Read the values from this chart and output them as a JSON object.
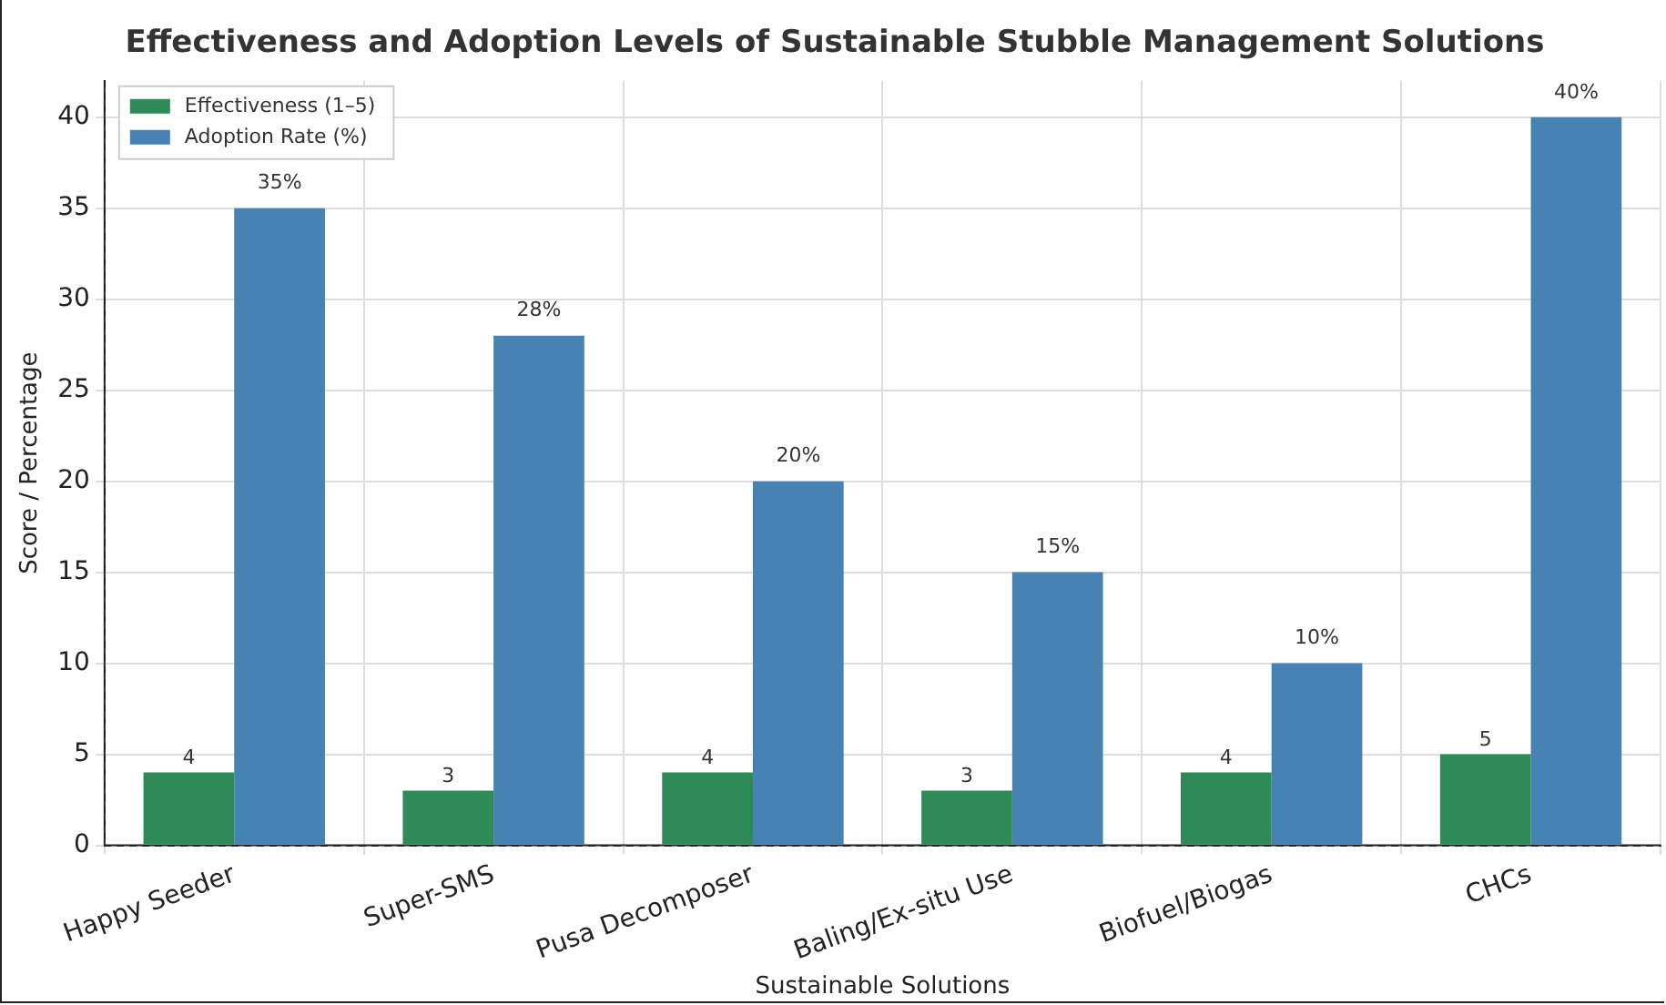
{
  "chart_data": {
    "type": "bar",
    "title": "Effectiveness and Adoption Levels of Sustainable Stubble Management Solutions",
    "xlabel": "Sustainable Solutions",
    "ylabel": "Score / Percentage",
    "categories": [
      "Happy Seeder",
      "Super-SMS",
      "Pusa Decomposer",
      "Baling/Ex-situ Use",
      "Biofuel/Biogas",
      "CHCs"
    ],
    "series": [
      {
        "name": "Effectiveness (1–5)",
        "color": "#2e8b57",
        "values": [
          4,
          3,
          4,
          3,
          4,
          5
        ],
        "value_labels": [
          "4",
          "3",
          "4",
          "3",
          "4",
          "5"
        ]
      },
      {
        "name": "Adoption Rate (%)",
        "color": "#4682b4",
        "values": [
          35,
          28,
          20,
          15,
          10,
          40
        ],
        "value_labels": [
          "35%",
          "28%",
          "20%",
          "15%",
          "10%",
          "40%"
        ]
      }
    ],
    "ylim": [
      0,
      42
    ],
    "yticks": [
      0,
      5,
      10,
      15,
      20,
      25,
      30,
      35,
      40
    ],
    "grid": true,
    "legend": "top left"
  }
}
